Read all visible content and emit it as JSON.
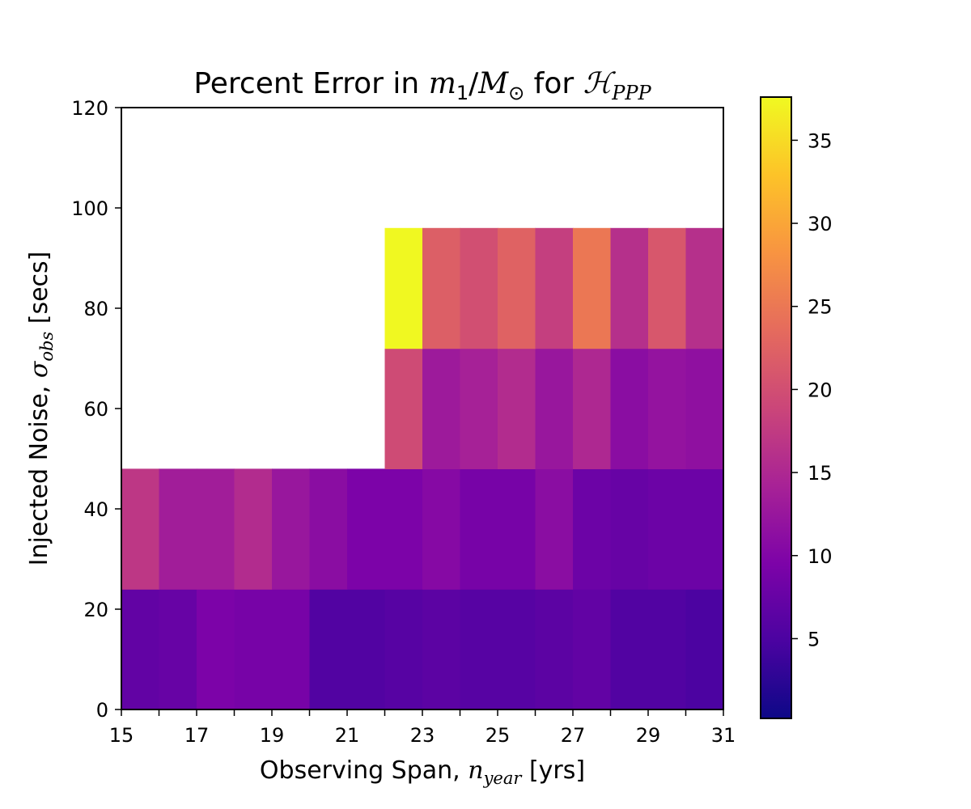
{
  "chart_data": {
    "type": "heatmap",
    "title": {
      "prefix": "Percent Error in ",
      "m": "m",
      "m_sub": "1",
      "slash": "/",
      "M": "M",
      "M_sub": "⊙",
      "for": " for ",
      "H": "ℋ",
      "H_sub": "PPP"
    },
    "xlabel": {
      "prefix": "Observing Span, ",
      "n": "n",
      "n_sub": "year",
      "suffix": " [yrs]"
    },
    "ylabel": {
      "prefix": "Injected Noise, ",
      "sigma": "σ",
      "sigma_sub": "obs",
      "suffix": " [secs]"
    },
    "xlim": [
      15,
      31
    ],
    "ylim": [
      0,
      120
    ],
    "x_tick_labels": [
      "15",
      "17",
      "19",
      "21",
      "23",
      "25",
      "27",
      "29",
      "31"
    ],
    "y_tick_labels": [
      "0",
      "20",
      "40",
      "60",
      "80",
      "100",
      "120"
    ],
    "colorbar": {
      "range": [
        0.2,
        37.6
      ],
      "tick_labels": [
        "5",
        "10",
        "15",
        "20",
        "25",
        "30",
        "35"
      ],
      "colormap": "plasma"
    },
    "rows": [
      {
        "y_range": [
          0,
          24
        ],
        "x_start": 15,
        "x_step": 1,
        "values": [
          7.0,
          7.5,
          9.5,
          9.0,
          9.0,
          5.5,
          5.5,
          6.0,
          6.5,
          6.0,
          6.0,
          6.5,
          7.0,
          5.5,
          5.5,
          5.0
        ]
      },
      {
        "y_range": [
          24,
          48
        ],
        "x_start": 15,
        "x_step": 1,
        "values": [
          17.0,
          13.5,
          13.5,
          15.5,
          12.5,
          11.0,
          9.5,
          9.5,
          10.5,
          9.0,
          9.0,
          11.0,
          8.0,
          7.5,
          8.0,
          8.0
        ]
      },
      {
        "y_range": [
          48,
          72
        ],
        "x_start": 22,
        "x_step": 1,
        "values": [
          19.5,
          13.0,
          14.0,
          15.5,
          12.5,
          15.0,
          11.0,
          12.0,
          11.5
        ]
      },
      {
        "y_range": [
          72,
          96
        ],
        "x_start": 22,
        "x_step": 1,
        "values": [
          37.5,
          22.0,
          20.0,
          22.5,
          18.0,
          25.0,
          16.0,
          21.0,
          16.0
        ]
      }
    ]
  }
}
